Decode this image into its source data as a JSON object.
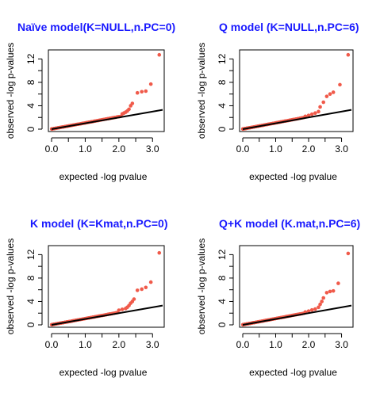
{
  "colors": {
    "title": "#1a1aff",
    "points": "#f05a4a",
    "line": "#000000",
    "axis": "#000000"
  },
  "chart_data": [
    {
      "type": "scatter",
      "title": "Naïve model(K=NULL,n.PC=0)",
      "xlabel": "expected -log pvalue",
      "ylabel": "observed -log p-values",
      "xlim": [
        0,
        3.3
      ],
      "ylim": [
        0,
        13
      ],
      "xticks": [
        "0.0",
        "0.5",
        "1.0",
        "1.5",
        "2.0",
        "2.5",
        "3.0"
      ],
      "yticks": [
        "0",
        "2",
        "4",
        "6",
        "8",
        "10",
        "12"
      ],
      "reference_line": {
        "x": [
          0,
          3.3
        ],
        "y": [
          0,
          3.3
        ]
      },
      "tail_points": [
        {
          "x": 2.1,
          "y": 2.6
        },
        {
          "x": 2.15,
          "y": 2.75
        },
        {
          "x": 2.2,
          "y": 2.9
        },
        {
          "x": 2.25,
          "y": 3.1
        },
        {
          "x": 2.3,
          "y": 3.4
        },
        {
          "x": 2.35,
          "y": 4.0
        },
        {
          "x": 2.4,
          "y": 4.4
        },
        {
          "x": 2.55,
          "y": 6.2
        },
        {
          "x": 2.68,
          "y": 6.4
        },
        {
          "x": 2.8,
          "y": 6.5
        },
        {
          "x": 2.95,
          "y": 7.7
        },
        {
          "x": 3.2,
          "y": 12.7
        }
      ]
    },
    {
      "type": "scatter",
      "title": "Q model (K=NULL,n.PC=6)",
      "xlabel": "expected -log pvalue",
      "ylabel": "observed -log p-values",
      "xlim": [
        0,
        3.3
      ],
      "ylim": [
        0,
        13
      ],
      "xticks": [
        "0.0",
        "0.5",
        "1.0",
        "1.5",
        "2.0",
        "2.5",
        "3.0"
      ],
      "yticks": [
        "0",
        "2",
        "4",
        "6",
        "8",
        "10",
        "12"
      ],
      "reference_line": {
        "x": [
          0,
          3.3
        ],
        "y": [
          0,
          3.3
        ]
      },
      "tail_points": [
        {
          "x": 1.9,
          "y": 2.2
        },
        {
          "x": 2.0,
          "y": 2.35
        },
        {
          "x": 2.1,
          "y": 2.55
        },
        {
          "x": 2.2,
          "y": 2.75
        },
        {
          "x": 2.3,
          "y": 3.0
        },
        {
          "x": 2.35,
          "y": 3.8
        },
        {
          "x": 2.45,
          "y": 4.6
        },
        {
          "x": 2.55,
          "y": 5.6
        },
        {
          "x": 2.65,
          "y": 6.0
        },
        {
          "x": 2.75,
          "y": 6.3
        },
        {
          "x": 2.95,
          "y": 7.6
        },
        {
          "x": 3.2,
          "y": 12.7
        }
      ]
    },
    {
      "type": "scatter",
      "title": "K model (K=Kmat,n.PC=0)",
      "xlabel": "expected -log pvalue",
      "ylabel": "observed -log p-values",
      "xlim": [
        0,
        3.3
      ],
      "ylim": [
        0,
        13
      ],
      "xticks": [
        "0.0",
        "0.5",
        "1.0",
        "1.5",
        "2.0",
        "2.5",
        "3.0"
      ],
      "yticks": [
        "0",
        "2",
        "4",
        "6",
        "8",
        "10",
        "12"
      ],
      "reference_line": {
        "x": [
          0,
          3.3
        ],
        "y": [
          0,
          3.3
        ]
      },
      "tail_points": [
        {
          "x": 2.0,
          "y": 2.5
        },
        {
          "x": 2.1,
          "y": 2.65
        },
        {
          "x": 2.2,
          "y": 2.8
        },
        {
          "x": 2.25,
          "y": 3.0
        },
        {
          "x": 2.3,
          "y": 3.3
        },
        {
          "x": 2.35,
          "y": 3.7
        },
        {
          "x": 2.4,
          "y": 4.0
        },
        {
          "x": 2.45,
          "y": 4.4
        },
        {
          "x": 2.55,
          "y": 5.9
        },
        {
          "x": 2.68,
          "y": 6.1
        },
        {
          "x": 2.8,
          "y": 6.4
        },
        {
          "x": 2.95,
          "y": 7.3
        },
        {
          "x": 3.2,
          "y": 12.3
        }
      ]
    },
    {
      "type": "scatter",
      "title": "Q+K model (K.mat,n.PC=6)",
      "xlabel": "expected -log pvalue",
      "ylabel": "observed -log p-values",
      "xlim": [
        0,
        3.3
      ],
      "ylim": [
        0,
        13
      ],
      "xticks": [
        "0.0",
        "0.5",
        "1.0",
        "1.5",
        "2.0",
        "2.5",
        "3.0"
      ],
      "yticks": [
        "0",
        "2",
        "4",
        "6",
        "8",
        "10",
        "12"
      ],
      "reference_line": {
        "x": [
          0,
          3.3
        ],
        "y": [
          0,
          3.3
        ]
      },
      "tail_points": [
        {
          "x": 1.9,
          "y": 2.2
        },
        {
          "x": 2.0,
          "y": 2.35
        },
        {
          "x": 2.1,
          "y": 2.55
        },
        {
          "x": 2.2,
          "y": 2.7
        },
        {
          "x": 2.3,
          "y": 3.0
        },
        {
          "x": 2.35,
          "y": 3.5
        },
        {
          "x": 2.4,
          "y": 4.0
        },
        {
          "x": 2.45,
          "y": 4.6
        },
        {
          "x": 2.55,
          "y": 5.5
        },
        {
          "x": 2.65,
          "y": 5.7
        },
        {
          "x": 2.75,
          "y": 5.8
        },
        {
          "x": 2.9,
          "y": 7.1
        },
        {
          "x": 3.2,
          "y": 12.2
        }
      ]
    }
  ]
}
